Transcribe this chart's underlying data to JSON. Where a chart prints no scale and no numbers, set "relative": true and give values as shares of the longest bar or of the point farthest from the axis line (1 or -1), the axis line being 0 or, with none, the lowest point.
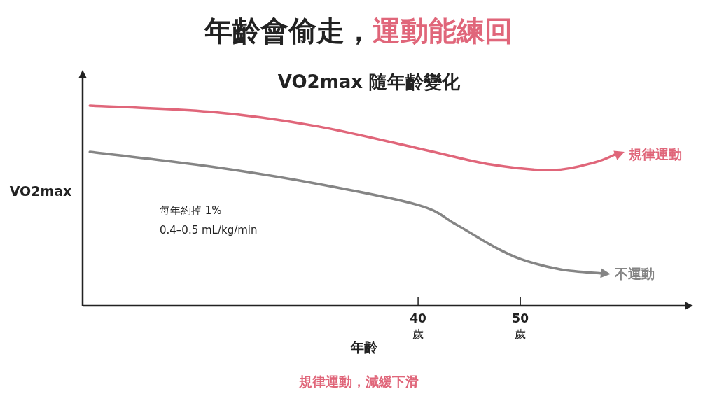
{
  "chart_data": {
    "type": "line",
    "title": "年齡會偷走，運動能練回",
    "subtitle": "VO2max 隨年齡變化",
    "xlabel": "年齡",
    "ylabel": "VO2max",
    "relative": true,
    "xlim": [
      7.2,
      66.9
    ],
    "xticks": [
      {
        "value": 40,
        "label": "40\n歲"
      },
      {
        "value": 50,
        "label": "50\n歲"
      }
    ],
    "marker": "none",
    "line_style": "solid",
    "series": [
      {
        "name": "規律運動",
        "color": "#e0667a",
        "x": [
          7.9,
          19.7,
          29.9,
          40,
          47.1,
          53.2,
          57.3,
          59.4
        ],
        "values": [
          1.0,
          0.969,
          0.899,
          0.787,
          0.706,
          0.678,
          0.717,
          0.759
        ]
      },
      {
        "name": "不運動",
        "color": "#858585",
        "x": [
          7.9,
          19.7,
          29.9,
          40,
          43.6,
          47.1,
          50,
          53.9,
          58.0
        ],
        "values": [
          0.769,
          0.696,
          0.612,
          0.503,
          0.409,
          0.304,
          0.234,
          0.182,
          0.161
        ]
      }
    ],
    "annotations": [
      "每年約掉 1%",
      "0.4–0.5 mL/kg/min",
      "規律運動，減緩下滑"
    ]
  }
}
